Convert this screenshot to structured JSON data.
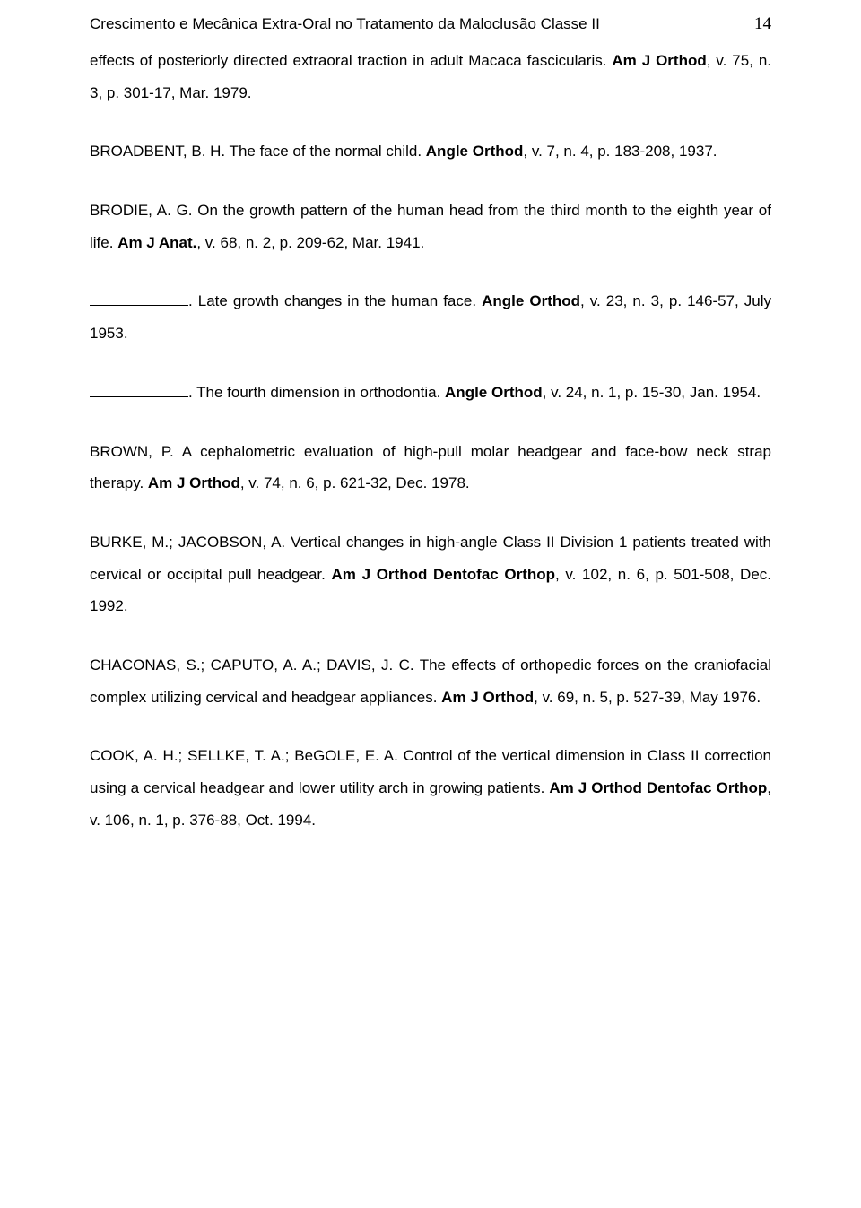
{
  "header": {
    "title": "Crescimento e Mecânica Extra-Oral no Tratamento da Maloclusão Classe II",
    "page_number": "14"
  },
  "p1": {
    "t1": "effects of posteriorly directed extraoral traction in adult Macaca fascicularis. ",
    "j1": "Am J Orthod",
    "t2": ", v. 75, n. 3, p. 301-17, Mar. 1979."
  },
  "p2": {
    "t1": "BROADBENT, B. H.  The face of the normal child. ",
    "j1": "Angle Orthod",
    "t2": ", v. 7, n. 4, p. 183-208, 1937."
  },
  "p3": {
    "t1": "BRODIE, A. G.  On the growth pattern of the human head from the third month to the eighth year of life. ",
    "j1": "Am J Anat.",
    "t2": ", v. 68, n. 2, p. 209-62, Mar. 1941."
  },
  "p4": {
    "t1": ".  Late growth changes in the human face. ",
    "j1": "Angle Orthod",
    "t2": ", v. 23, n. 3, p. 146-57, July 1953."
  },
  "p5": {
    "t1": ".  The fourth dimension in orthodontia. ",
    "j1": "Angle Orthod",
    "t2": ", v. 24, n. 1, p. 15-30, Jan. 1954."
  },
  "p6": {
    "t1": "BROWN, P.  A cephalometric evaluation of high-pull molar headgear and face-bow neck strap therapy. ",
    "j1": "Am J Orthod",
    "t2": ", v. 74, n. 6, p. 621-32, Dec. 1978."
  },
  "p7": {
    "t1": "BURKE, M.; JACOBSON, A.  Vertical changes in high-angle Class II Division 1 patients treated with cervical or occipital pull headgear. ",
    "j1": "Am J Orthod Dentofac Orthop",
    "t2": ", v. 102, n. 6, p. 501-508, Dec. 1992."
  },
  "p8": {
    "t1": "CHACONAS, S.; CAPUTO, A. A.; DAVIS, J. C.  The effects of orthopedic forces on the craniofacial complex utilizing cervical and headgear appliances. ",
    "j1": "Am J Orthod",
    "t2": ", v. 69, n. 5, p. 527-39, May 1976."
  },
  "p9": {
    "t1": "COOK, A. H.; SELLKE, T. A.; BeGOLE, E. A.  Control of the vertical dimension in Class II correction using a cervical headgear and lower utility arch in growing patients. ",
    "j1": "Am J Orthod Dentofac Orthop",
    "t2": ", v. 106, n. 1, p. 376-88, Oct. 1994."
  }
}
